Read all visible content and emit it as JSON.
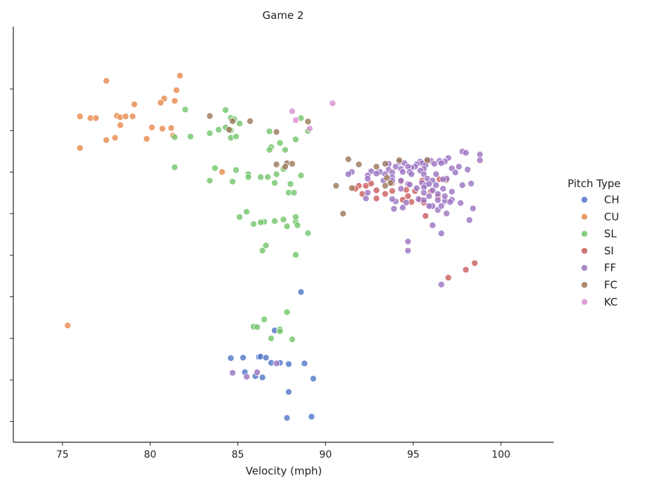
{
  "chart_data": {
    "type": "scatter",
    "title": "Game 2",
    "xlabel": "Velocity (mph)",
    "ylabel": "",
    "xlim": [
      72.2,
      103.0
    ],
    "ylim": [
      0,
      20
    ],
    "xticks": [
      75,
      80,
      85,
      90,
      95,
      100
    ],
    "xtick_labels": [
      "75",
      "80",
      "85",
      "90",
      "95",
      "100"
    ],
    "yticks": [
      1,
      3,
      5,
      7,
      9,
      11,
      13,
      15,
      17
    ],
    "ytick_labels": [
      "",
      "",
      "",
      "",
      "",
      "",
      "",
      "",
      ""
    ],
    "grid": false,
    "legend": {
      "title": "Pitch Type",
      "position": "right"
    },
    "series": [
      {
        "name": "CH",
        "color": "#4f76c8",
        "points": [
          [
            88.6,
            7.23
          ],
          [
            87.1,
            5.38
          ],
          [
            84.6,
            4.05
          ],
          [
            85.3,
            4.07
          ],
          [
            86.2,
            4.1
          ],
          [
            86.3,
            4.12
          ],
          [
            86.6,
            4.07
          ],
          [
            86.9,
            3.82
          ],
          [
            87.4,
            3.82
          ],
          [
            87.9,
            3.76
          ],
          [
            88.8,
            3.79
          ],
          [
            85.4,
            3.37
          ],
          [
            86.0,
            3.18
          ],
          [
            86.4,
            3.12
          ],
          [
            89.3,
            3.06
          ],
          [
            87.9,
            2.42
          ],
          [
            89.2,
            1.23
          ],
          [
            87.8,
            1.17
          ]
        ]
      },
      {
        "name": "CU",
        "color": "#e8884c",
        "points": [
          [
            81.7,
            17.64
          ],
          [
            77.5,
            17.39
          ],
          [
            81.5,
            16.94
          ],
          [
            80.8,
            16.54
          ],
          [
            81.4,
            16.43
          ],
          [
            80.6,
            16.34
          ],
          [
            79.1,
            16.26
          ],
          [
            76.0,
            15.68
          ],
          [
            76.6,
            15.6
          ],
          [
            76.9,
            15.6
          ],
          [
            78.1,
            15.71
          ],
          [
            78.3,
            15.64
          ],
          [
            78.6,
            15.68
          ],
          [
            79.0,
            15.68
          ],
          [
            78.3,
            15.26
          ],
          [
            80.1,
            15.15
          ],
          [
            80.7,
            15.09
          ],
          [
            81.2,
            15.12
          ],
          [
            78.0,
            14.65
          ],
          [
            79.8,
            14.6
          ],
          [
            77.5,
            14.54
          ],
          [
            81.3,
            14.76
          ],
          [
            76.0,
            14.16
          ],
          [
            84.1,
            13.01
          ],
          [
            75.3,
            5.62
          ]
        ]
      },
      {
        "name": "SL",
        "color": "#72c46a",
        "points": [
          [
            82.0,
            16.01
          ],
          [
            84.3,
            15.99
          ],
          [
            84.6,
            15.61
          ],
          [
            84.8,
            15.54
          ],
          [
            85.1,
            15.34
          ],
          [
            84.3,
            15.15
          ],
          [
            83.9,
            15.04
          ],
          [
            84.6,
            15.01
          ],
          [
            83.4,
            14.87
          ],
          [
            84.6,
            14.65
          ],
          [
            84.9,
            14.71
          ],
          [
            81.4,
            14.68
          ],
          [
            82.3,
            14.71
          ],
          [
            86.8,
            14.96
          ],
          [
            87.4,
            14.4
          ],
          [
            88.3,
            14.57
          ],
          [
            86.9,
            14.2
          ],
          [
            86.8,
            14.07
          ],
          [
            87.7,
            14.07
          ],
          [
            89.0,
            14.98
          ],
          [
            88.6,
            15.6
          ],
          [
            81.4,
            13.23
          ],
          [
            83.7,
            13.19
          ],
          [
            84.9,
            13.1
          ],
          [
            85.6,
            12.9
          ],
          [
            86.3,
            12.76
          ],
          [
            86.7,
            12.76
          ],
          [
            87.9,
            12.01
          ],
          [
            88.2,
            12.01
          ],
          [
            87.6,
            13.15
          ],
          [
            87.2,
            12.9
          ],
          [
            85.6,
            12.76
          ],
          [
            83.4,
            12.59
          ],
          [
            84.7,
            12.54
          ],
          [
            88.6,
            12.84
          ],
          [
            87.1,
            12.48
          ],
          [
            88.0,
            12.43
          ],
          [
            85.5,
            11.09
          ],
          [
            87.6,
            10.72
          ],
          [
            88.3,
            10.61
          ],
          [
            89.0,
            10.06
          ],
          [
            86.6,
            9.47
          ],
          [
            86.4,
            9.22
          ],
          [
            88.3,
            9.02
          ],
          [
            88.4,
            10.44
          ],
          [
            85.1,
            10.84
          ],
          [
            86.5,
            10.61
          ],
          [
            87.1,
            10.64
          ],
          [
            88.3,
            10.84
          ],
          [
            85.9,
            10.5
          ],
          [
            86.3,
            10.58
          ],
          [
            87.8,
            10.39
          ],
          [
            87.8,
            6.26
          ],
          [
            86.5,
            5.91
          ],
          [
            85.9,
            5.56
          ],
          [
            86.1,
            5.54
          ],
          [
            87.4,
            5.43
          ],
          [
            87.4,
            5.34
          ],
          [
            88.1,
            4.95
          ],
          [
            86.9,
            5.0
          ]
        ]
      },
      {
        "name": "SI",
        "color": "#c95b5b",
        "points": [
          [
            91.9,
            12.34
          ],
          [
            92.3,
            12.34
          ],
          [
            92.6,
            12.45
          ],
          [
            93.8,
            12.48
          ],
          [
            94.3,
            12.54
          ],
          [
            95.5,
            12.59
          ],
          [
            96.5,
            12.65
          ],
          [
            96.9,
            12.62
          ],
          [
            91.7,
            12.2
          ],
          [
            92.9,
            12.12
          ],
          [
            93.8,
            12.09
          ],
          [
            94.6,
            12.15
          ],
          [
            95.1,
            12.09
          ],
          [
            96.0,
            12.06
          ],
          [
            92.1,
            11.95
          ],
          [
            93.4,
            11.95
          ],
          [
            94.4,
            11.67
          ],
          [
            94.7,
            11.84
          ],
          [
            92.9,
            11.73
          ],
          [
            95.4,
            11.67
          ],
          [
            96.4,
            11.81
          ],
          [
            94.9,
            11.56
          ],
          [
            95.6,
            11.53
          ],
          [
            95.7,
            10.89
          ],
          [
            98.5,
            8.62
          ],
          [
            98.0,
            8.3
          ],
          [
            97.0,
            7.92
          ]
        ]
      },
      {
        "name": "FF",
        "color": "#9a72c0",
        "points": [
          [
            97.8,
            13.99
          ],
          [
            98.0,
            13.93
          ],
          [
            98.8,
            13.85
          ],
          [
            98.8,
            13.57
          ],
          [
            97.0,
            13.68
          ],
          [
            96.5,
            13.54
          ],
          [
            96.8,
            13.51
          ],
          [
            95.8,
            13.6
          ],
          [
            96.0,
            13.54
          ],
          [
            96.6,
            13.43
          ],
          [
            96.2,
            13.4
          ],
          [
            95.4,
            13.51
          ],
          [
            95.5,
            13.43
          ],
          [
            95.2,
            13.38
          ],
          [
            95.7,
            13.34
          ],
          [
            95.1,
            13.26
          ],
          [
            94.9,
            13.21
          ],
          [
            95.6,
            13.15
          ],
          [
            94.2,
            13.48
          ],
          [
            94.5,
            13.43
          ],
          [
            94.7,
            13.26
          ],
          [
            93.6,
            13.4
          ],
          [
            94.0,
            13.26
          ],
          [
            93.6,
            13.12
          ],
          [
            94.3,
            13.15
          ],
          [
            94.4,
            13.01
          ],
          [
            94.8,
            13.01
          ],
          [
            93.8,
            12.98
          ],
          [
            93.1,
            13.01
          ],
          [
            92.6,
            13.04
          ],
          [
            92.9,
            12.93
          ],
          [
            91.5,
            13.01
          ],
          [
            91.3,
            12.9
          ],
          [
            92.4,
            12.84
          ],
          [
            92.4,
            12.68
          ],
          [
            93.4,
            12.9
          ],
          [
            93.8,
            12.76
          ],
          [
            94.9,
            12.9
          ],
          [
            95.4,
            13.07
          ],
          [
            95.6,
            12.9
          ],
          [
            95.8,
            12.68
          ],
          [
            96.3,
            12.9
          ],
          [
            97.2,
            13.18
          ],
          [
            97.6,
            13.26
          ],
          [
            98.1,
            13.12
          ],
          [
            97.4,
            12.98
          ],
          [
            96.9,
            12.68
          ],
          [
            96.7,
            12.65
          ],
          [
            96.1,
            12.59
          ],
          [
            95.5,
            12.48
          ],
          [
            95.7,
            12.37
          ],
          [
            95.9,
            12.43
          ],
          [
            96.3,
            12.37
          ],
          [
            96.7,
            12.2
          ],
          [
            97.2,
            12.06
          ],
          [
            97.8,
            12.37
          ],
          [
            98.3,
            12.45
          ],
          [
            95.9,
            11.84
          ],
          [
            95.3,
            11.7
          ],
          [
            95.6,
            11.65
          ],
          [
            96.4,
            11.65
          ],
          [
            96.8,
            11.62
          ],
          [
            97.2,
            11.67
          ],
          [
            97.7,
            11.51
          ],
          [
            98.4,
            11.25
          ],
          [
            96.0,
            11.34
          ],
          [
            96.1,
            11.37
          ],
          [
            94.6,
            11.53
          ],
          [
            94.4,
            11.29
          ],
          [
            94.0,
            11.59
          ],
          [
            93.8,
            11.7
          ],
          [
            92.3,
            11.73
          ],
          [
            92.4,
            12.01
          ],
          [
            93.9,
            11.23
          ],
          [
            95.9,
            11.37
          ],
          [
            96.4,
            11.18
          ],
          [
            96.9,
            11.01
          ],
          [
            98.2,
            10.69
          ],
          [
            96.1,
            10.44
          ],
          [
            96.6,
            10.05
          ],
          [
            94.7,
            9.66
          ],
          [
            94.7,
            9.22
          ],
          [
            96.6,
            7.59
          ],
          [
            95.6,
            12.26
          ],
          [
            94.3,
            12.2
          ],
          [
            94.7,
            12.43
          ],
          [
            93.3,
            12.59
          ],
          [
            93.8,
            12.59
          ],
          [
            94.3,
            12.59
          ],
          [
            94.8,
            12.4
          ],
          [
            95.2,
            12.23
          ],
          [
            95.6,
            12.01
          ],
          [
            96.1,
            12.12
          ],
          [
            96.4,
            11.95
          ],
          [
            96.8,
            11.84
          ],
          [
            97.1,
            11.56
          ],
          [
            96.6,
            11.37
          ],
          [
            84.7,
            3.34
          ],
          [
            85.5,
            3.15
          ],
          [
            86.1,
            3.37
          ],
          [
            87.2,
            3.79
          ]
        ]
      },
      {
        "name": "FC",
        "color": "#9a7658",
        "points": [
          [
            83.4,
            15.7
          ],
          [
            84.7,
            15.45
          ],
          [
            85.7,
            15.45
          ],
          [
            84.5,
            15.04
          ],
          [
            89.0,
            15.43
          ],
          [
            87.2,
            14.93
          ],
          [
            91.3,
            13.62
          ],
          [
            92.9,
            13.26
          ],
          [
            91.9,
            13.37
          ],
          [
            93.4,
            13.4
          ],
          [
            94.2,
            13.57
          ],
          [
            95.8,
            13.57
          ],
          [
            87.8,
            13.43
          ],
          [
            87.2,
            13.37
          ],
          [
            87.7,
            13.26
          ],
          [
            88.1,
            13.4
          ],
          [
            90.6,
            12.34
          ],
          [
            91.5,
            12.23
          ],
          [
            93.5,
            12.73
          ],
          [
            93.7,
            12.48
          ],
          [
            93.4,
            12.34
          ],
          [
            91.0,
            11.0
          ]
        ]
      },
      {
        "name": "KC",
        "color": "#d98fd0",
        "points": [
          [
            90.4,
            16.31
          ],
          [
            88.1,
            15.93
          ],
          [
            88.3,
            15.5
          ],
          [
            89.1,
            15.1
          ]
        ]
      }
    ]
  }
}
